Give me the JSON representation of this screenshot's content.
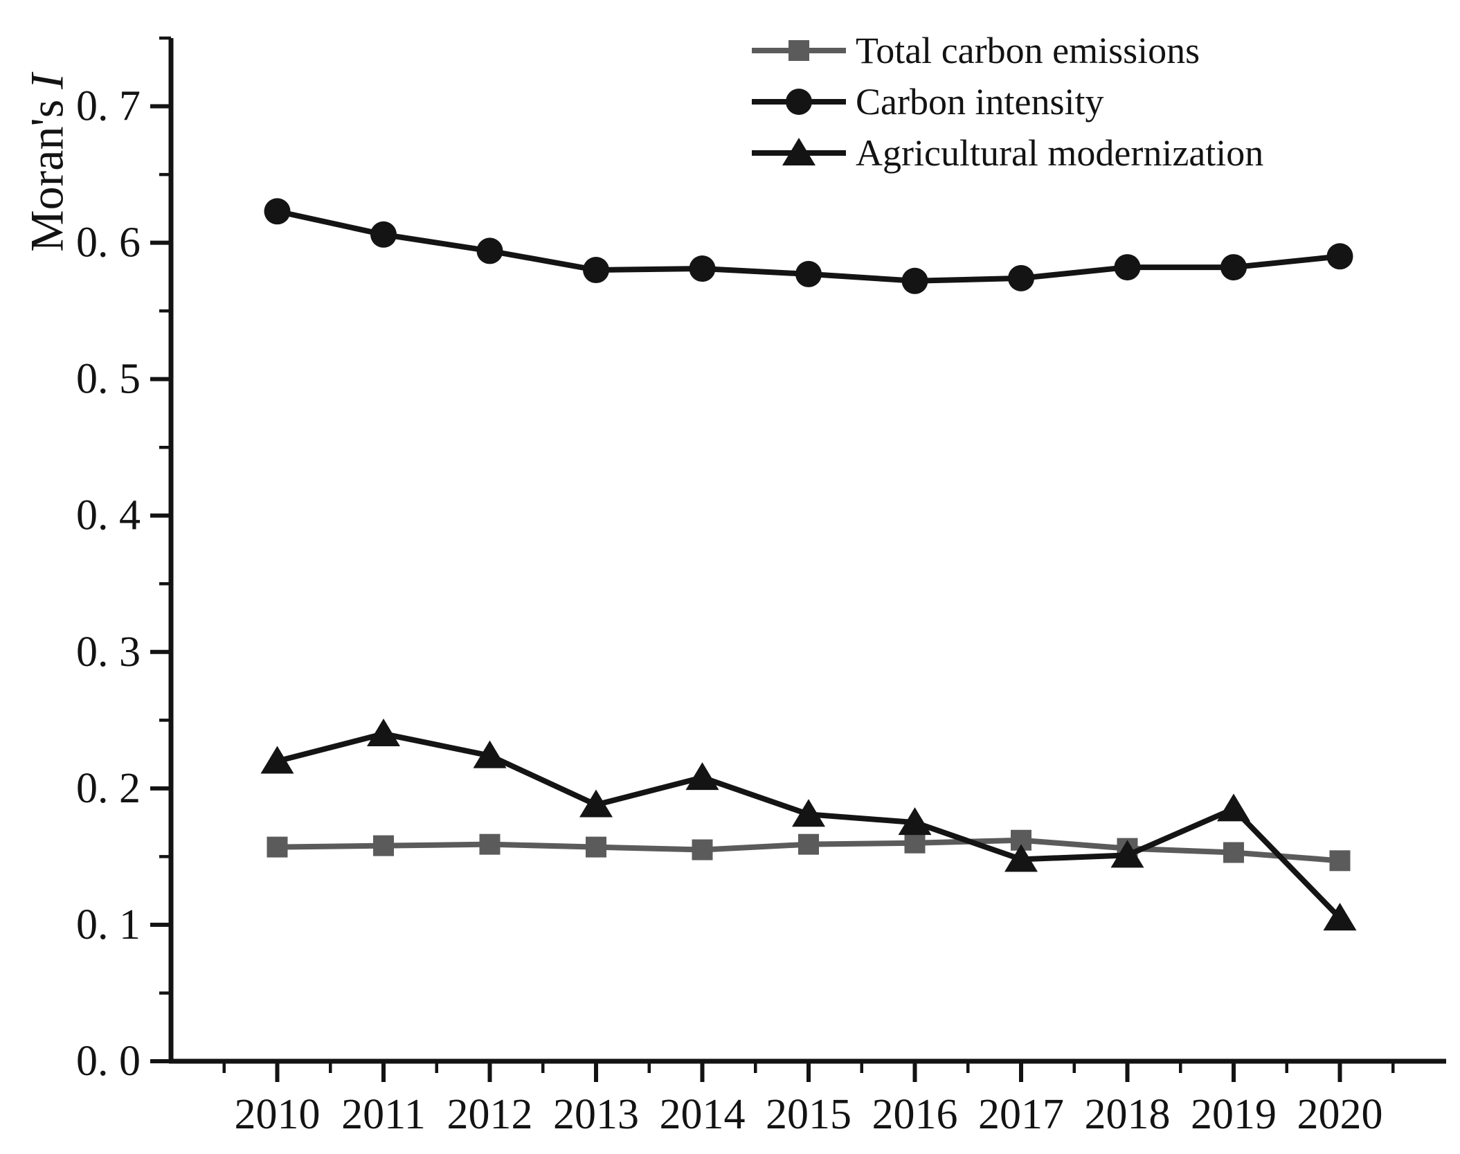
{
  "figure": {
    "background": "#ffffff",
    "ylabel_regular": "Moran's",
    "ylabel_italic": "I",
    "axis_color": "#131313"
  },
  "chart_data": {
    "type": "line",
    "title": "",
    "xlabel": "",
    "ylabel": "Moran's I",
    "x": [
      2010,
      2011,
      2012,
      2013,
      2014,
      2015,
      2016,
      2017,
      2018,
      2019,
      2020
    ],
    "x_tick_labels": [
      "2010",
      "2011",
      "2012",
      "2013",
      "2014",
      "2015",
      "2016",
      "2017",
      "2018",
      "2019",
      "2020"
    ],
    "y_major_ticks": [
      0.0,
      0.1,
      0.2,
      0.3,
      0.4,
      0.5,
      0.6,
      0.7
    ],
    "y_tick_labels": [
      "0. 0",
      "0. 1",
      "0. 2",
      "0. 3",
      "0. 4",
      "0. 5",
      "0. 6",
      "0. 7"
    ],
    "ylim": [
      0,
      0.75
    ],
    "xlim": [
      2009,
      2021
    ],
    "grid": false,
    "legend_position": "top-center",
    "series": [
      {
        "name": "Total carbon emissions",
        "marker": "square",
        "color": "#5b5b5b",
        "values": [
          0.157,
          0.158,
          0.159,
          0.157,
          0.155,
          0.159,
          0.16,
          0.162,
          0.156,
          0.153,
          0.147
        ]
      },
      {
        "name": "Carbon intensity",
        "marker": "circle",
        "color": "#141414",
        "values": [
          0.623,
          0.606,
          0.594,
          0.58,
          0.581,
          0.577,
          0.572,
          0.574,
          0.582,
          0.582,
          0.59
        ]
      },
      {
        "name": "Agricultural modernization",
        "marker": "triangle",
        "color": "#141414",
        "values": [
          0.22,
          0.24,
          0.224,
          0.188,
          0.208,
          0.181,
          0.175,
          0.148,
          0.151,
          0.185,
          0.105
        ]
      }
    ]
  }
}
